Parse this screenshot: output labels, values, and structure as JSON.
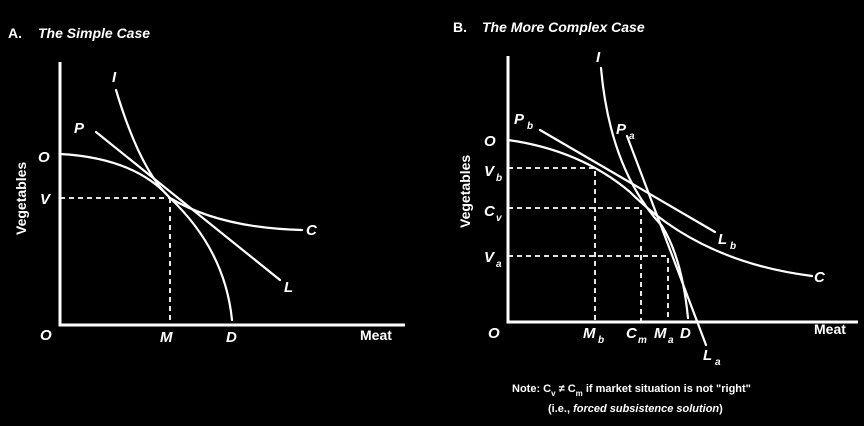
{
  "panel_a": {
    "letter": "A.",
    "title": "The Simple Case",
    "y_axis": "Vegetables",
    "x_axis": "Meat",
    "labels": {
      "origin": "O",
      "o_top": "O",
      "v": "V",
      "m": "M",
      "d": "D",
      "i": "I",
      "p": "P",
      "c": "C",
      "l": "L"
    }
  },
  "panel_b": {
    "letter": "B.",
    "title": "The More Complex Case",
    "y_axis": "Vegetables",
    "x_axis": "Meat",
    "labels": {
      "origin": "O",
      "o_top": "O",
      "v_main": "V",
      "v_b_sub": "b",
      "c_main": "C",
      "c_v_sub": "v",
      "v2_main": "V",
      "v2_sub": "a",
      "mb_main": "M",
      "mb_sub": "b",
      "cm_main": "C",
      "cm_sub": "m",
      "ma_main": "M",
      "ma_sub": "a",
      "d": "D",
      "i": "I",
      "pb_main": "P",
      "pb_sub": "b",
      "pa_main": "P",
      "pa_sub": "a",
      "lb_main": "L",
      "lb_sub": "b",
      "la_main": "L",
      "la_sub": "a",
      "c": "C"
    }
  },
  "note": {
    "line1_prefix": "Note: C",
    "line1_sub1": "v",
    "line1_mid": " ≠ C",
    "line1_sub2": "m",
    "line1_suffix": " if market situation is not \"right\"",
    "line2_prefix": "(i.e., ",
    "line2_italic": "forced subsistence solution",
    "line2_suffix": ")"
  }
}
